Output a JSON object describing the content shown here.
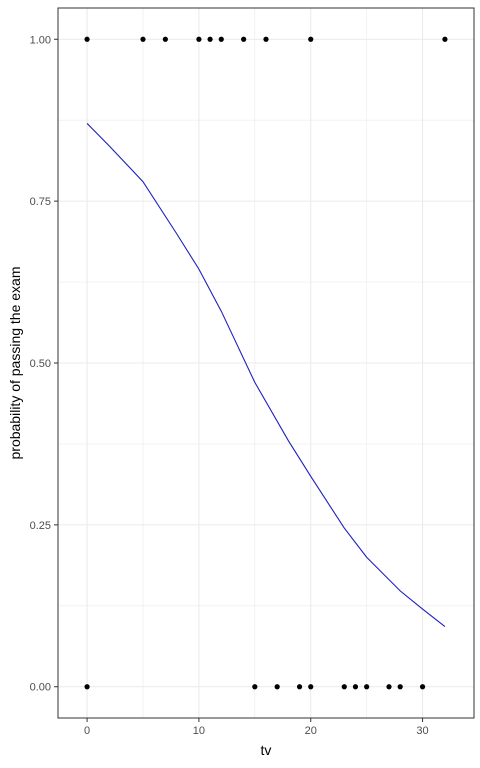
{
  "chart_data": {
    "type": "scatter",
    "xlabel": "tv",
    "ylabel": "probability of passing the exam",
    "xlim": [
      -2.6,
      34.6
    ],
    "ylim": [
      -0.0483,
      1.0483
    ],
    "x_ticks": [
      0,
      10,
      20,
      30
    ],
    "x_tick_labels": [
      "0",
      "10",
      "20",
      "30"
    ],
    "x_minor_ticks": [
      5,
      15,
      25
    ],
    "y_ticks": [
      0,
      0.25,
      0.5,
      0.75,
      1.0
    ],
    "y_tick_labels": [
      "0.00",
      "0.25",
      "0.50",
      "0.75",
      "1.00"
    ],
    "y_minor_ticks": [
      0.125,
      0.375,
      0.625,
      0.875
    ],
    "grid": true,
    "legend": "none",
    "series": [
      {
        "type": "scatter",
        "color": "#000000",
        "x": [
          0,
          5,
          7,
          10,
          11,
          12,
          14,
          16,
          20,
          32,
          0,
          15,
          17,
          19,
          20,
          23,
          24,
          25,
          27,
          28,
          30
        ],
        "y": [
          1,
          1,
          1,
          1,
          1,
          1,
          1,
          1,
          1,
          1,
          0,
          0,
          0,
          0,
          0,
          0,
          0,
          0,
          0,
          0,
          0
        ]
      },
      {
        "type": "line",
        "color": "#1f1fbf",
        "x": [
          0,
          2,
          5,
          8,
          10,
          12,
          15,
          18,
          20,
          23,
          25,
          28,
          30,
          32
        ],
        "y": [
          0.87,
          0.835,
          0.78,
          0.7,
          0.645,
          0.58,
          0.47,
          0.38,
          0.325,
          0.245,
          0.2,
          0.148,
          0.12,
          0.093
        ]
      }
    ]
  },
  "colors": {
    "grid": "#ebebeb",
    "panel_border": "#333333",
    "tick_mark": "#333333",
    "tick_label": "#4d4d4d",
    "point": "#000000",
    "curve": "#1f1fbf"
  }
}
